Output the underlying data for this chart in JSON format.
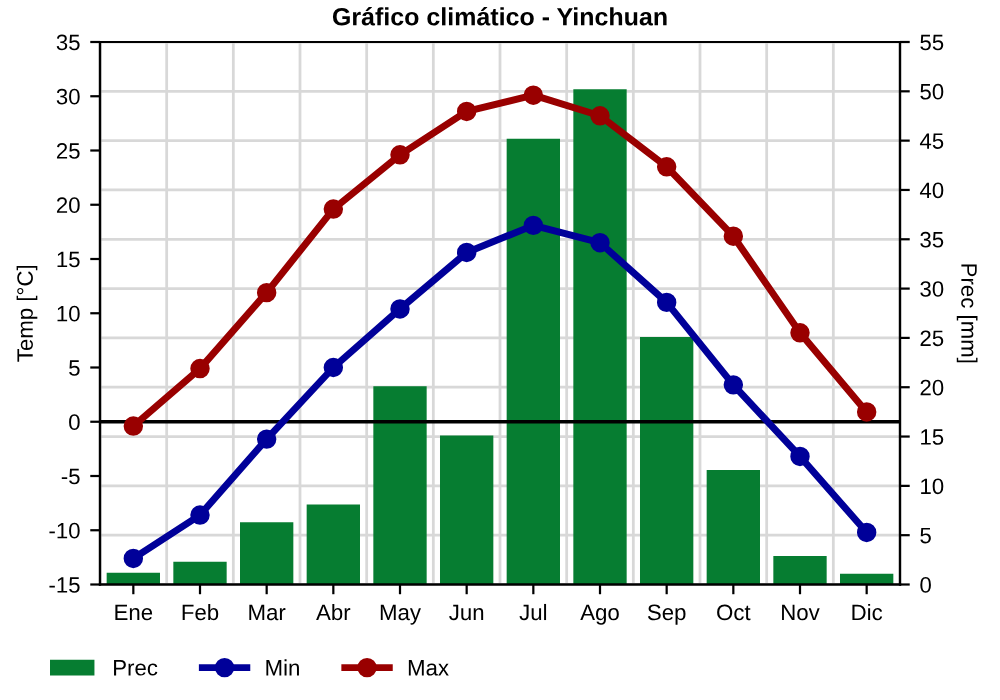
{
  "chart_data": {
    "type": "line",
    "title": "Gráfico climático - Yinchuan",
    "ylabel": "Temp [°C]",
    "y2label": "Prec [mm]",
    "categories": [
      "Ene",
      "Feb",
      "Mar",
      "Abr",
      "May",
      "Jun",
      "Jul",
      "Ago",
      "Sep",
      "Oct",
      "Nov",
      "Dic"
    ],
    "series": [
      {
        "name": "Prec",
        "type": "bar",
        "axis": "y2",
        "color": "#067d31",
        "values": [
          1.2,
          2.3,
          6.3,
          8.1,
          20.1,
          15.1,
          45.2,
          50.2,
          25.1,
          11.6,
          2.9,
          1.1
        ]
      },
      {
        "name": "Min",
        "color": "#000099",
        "values": [
          -12.6,
          -8.6,
          -1.6,
          5.0,
          10.4,
          15.6,
          18.1,
          16.5,
          11.0,
          3.4,
          -3.2,
          -10.2
        ]
      },
      {
        "name": "Max",
        "color": "#990000",
        "values": [
          -0.4,
          4.9,
          11.9,
          19.6,
          24.6,
          28.6,
          30.1,
          28.2,
          23.5,
          17.1,
          8.2,
          0.9
        ]
      }
    ],
    "ylim": [
      -15,
      35
    ],
    "yticks": [
      -15,
      -10,
      -5,
      0,
      5,
      10,
      15,
      20,
      25,
      30,
      35
    ],
    "y2lim": [
      0,
      55
    ],
    "y2ticks": [
      0,
      5,
      10,
      15,
      20,
      25,
      30,
      35,
      40,
      45,
      50,
      55
    ],
    "ref_lines": [
      {
        "axis": "y",
        "value": 0,
        "color": "#000000"
      }
    ],
    "grid": true,
    "legend": "bottom",
    "marker": "circle",
    "line_style": "solid"
  }
}
